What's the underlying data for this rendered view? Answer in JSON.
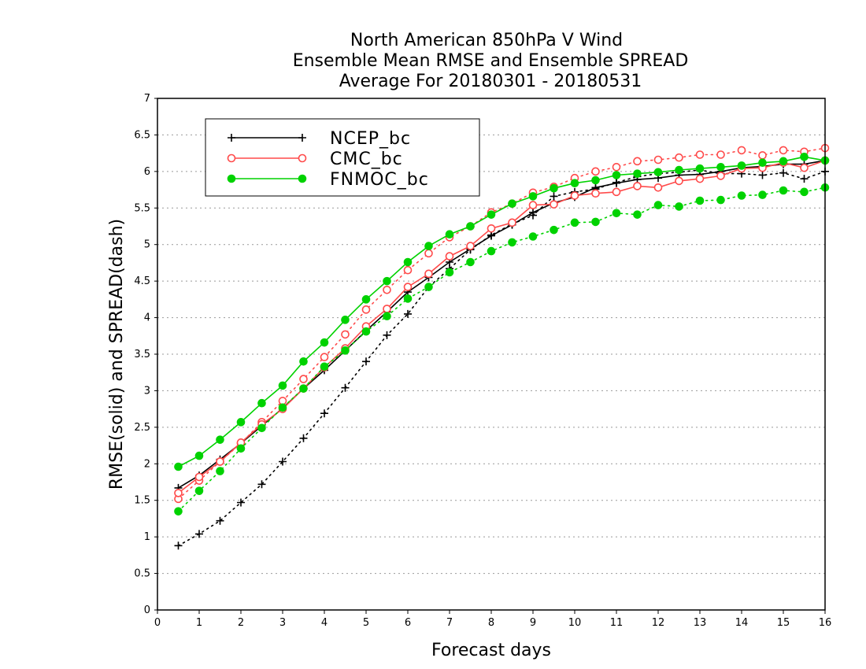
{
  "chart_data": {
    "type": "line",
    "title": [
      "North American 850hPa V Wind",
      "Ensemble Mean RMSE and Ensemble SPREAD",
      "Average For 20180301 - 20180531"
    ],
    "xlabel": "Forecast days",
    "ylabel": "RMSE(solid) and SPREAD(dash)",
    "xlim": [
      0,
      16
    ],
    "ylim": [
      0,
      7
    ],
    "xticks": [
      "0",
      "1",
      "2",
      "3",
      "4",
      "5",
      "6",
      "7",
      "8",
      "9",
      "10",
      "11",
      "12",
      "13",
      "14",
      "15",
      "16"
    ],
    "yticks": [
      "0",
      "0.5",
      "1",
      "1.5",
      "2",
      "2.5",
      "3",
      "3.5",
      "4",
      "4.5",
      "5",
      "5.5",
      "6",
      "6.5",
      "7"
    ],
    "grid": "horizontal dotted",
    "legend_position": "top-left",
    "x": [
      0.5,
      1,
      1.5,
      2,
      2.5,
      3,
      3.5,
      4,
      4.5,
      5,
      5.5,
      6,
      6.5,
      7,
      7.5,
      8,
      8.5,
      9,
      9.5,
      10,
      10.5,
      11,
      11.5,
      12,
      12.5,
      13,
      13.5,
      14,
      14.5,
      15,
      15.5,
      16
    ],
    "series": [
      {
        "name": "NCEP_bc",
        "color": "#000000",
        "marker": "plus",
        "rmse": [
          1.67,
          1.84,
          2.06,
          2.28,
          2.52,
          2.76,
          3.03,
          3.28,
          3.55,
          3.82,
          4.08,
          4.35,
          4.55,
          4.76,
          4.94,
          5.12,
          5.27,
          5.44,
          5.57,
          5.65,
          5.78,
          5.84,
          5.89,
          5.91,
          5.95,
          5.96,
          6.0,
          6.05,
          6.07,
          6.1,
          6.1,
          6.15
        ],
        "spread": [
          0.88,
          1.04,
          1.22,
          1.47,
          1.72,
          2.03,
          2.35,
          2.69,
          3.04,
          3.4,
          3.76,
          4.05,
          4.42,
          4.67,
          4.93,
          5.13,
          5.28,
          5.4,
          5.66,
          5.72,
          5.76,
          5.85,
          5.93,
          5.97,
          5.99,
          6.02,
          5.97,
          5.97,
          5.95,
          5.98,
          5.9,
          6.0
        ]
      },
      {
        "name": "CMC_bc",
        "color": "#ff4a4a",
        "marker": "open-circle",
        "rmse": [
          1.6,
          1.82,
          2.03,
          2.29,
          2.54,
          2.75,
          3.03,
          3.32,
          3.58,
          3.88,
          4.12,
          4.42,
          4.6,
          4.84,
          4.98,
          5.22,
          5.3,
          5.54,
          5.55,
          5.67,
          5.7,
          5.72,
          5.8,
          5.78,
          5.87,
          5.9,
          5.94,
          6.04,
          6.05,
          6.12,
          6.05,
          6.15
        ],
        "spread": [
          1.52,
          1.77,
          2.03,
          2.28,
          2.57,
          2.86,
          3.16,
          3.46,
          3.77,
          4.11,
          4.38,
          4.65,
          4.88,
          5.1,
          5.25,
          5.44,
          5.56,
          5.71,
          5.79,
          5.91,
          6.0,
          6.06,
          6.14,
          6.16,
          6.19,
          6.23,
          6.23,
          6.29,
          6.22,
          6.29,
          6.27,
          6.32
        ]
      },
      {
        "name": "FNMOC_bc",
        "color": "#00d200",
        "marker": "filled-circle",
        "rmse": [
          1.96,
          2.11,
          2.33,
          2.57,
          2.83,
          3.07,
          3.4,
          3.66,
          3.97,
          4.25,
          4.5,
          4.76,
          4.98,
          5.14,
          5.25,
          5.41,
          5.56,
          5.66,
          5.77,
          5.84,
          5.88,
          5.95,
          5.97,
          5.99,
          6.02,
          6.04,
          6.06,
          6.08,
          6.12,
          6.14,
          6.2,
          6.15
        ],
        "spread": [
          1.35,
          1.63,
          1.9,
          2.21,
          2.49,
          2.77,
          3.03,
          3.33,
          3.55,
          3.81,
          4.02,
          4.26,
          4.42,
          4.62,
          4.76,
          4.91,
          5.03,
          5.11,
          5.2,
          5.3,
          5.31,
          5.43,
          5.41,
          5.54,
          5.52,
          5.6,
          5.61,
          5.67,
          5.68,
          5.74,
          5.72,
          5.78
        ]
      }
    ]
  }
}
